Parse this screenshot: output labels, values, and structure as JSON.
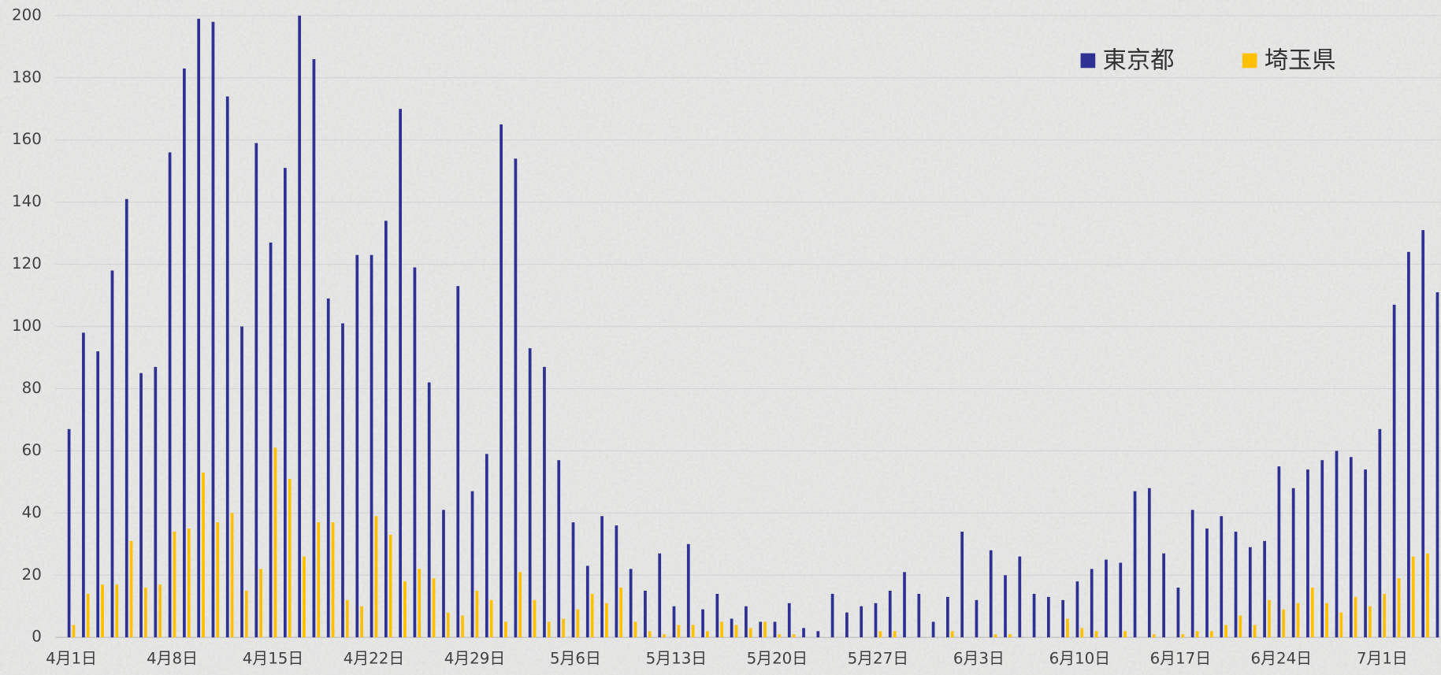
{
  "chart_data": {
    "type": "bar",
    "categories": [
      "4月1日",
      null,
      null,
      null,
      null,
      null,
      null,
      "4月8日",
      null,
      null,
      null,
      null,
      null,
      null,
      "4月15日",
      null,
      null,
      null,
      null,
      null,
      null,
      "4月22日",
      null,
      null,
      null,
      null,
      null,
      null,
      "4月29日",
      null,
      null,
      null,
      null,
      null,
      null,
      "5月6日",
      null,
      null,
      null,
      null,
      null,
      null,
      "5月13日",
      null,
      null,
      null,
      null,
      null,
      null,
      "5月20日",
      null,
      null,
      null,
      null,
      null,
      null,
      "5月27日",
      null,
      null,
      null,
      null,
      null,
      null,
      "6月3日",
      null,
      null,
      null,
      null,
      null,
      null,
      "6月10日",
      null,
      null,
      null,
      null,
      null,
      null,
      "6月17日",
      null,
      null,
      null,
      null,
      null,
      null,
      "6月24日",
      null,
      null,
      null,
      null,
      null,
      null,
      "7月1日",
      null,
      null,
      null,
      null
    ],
    "series": [
      {
        "name": "東京都",
        "color": "#2e3192",
        "values": [
          67,
          98,
          92,
          118,
          141,
          85,
          87,
          156,
          183,
          199,
          198,
          174,
          100,
          159,
          127,
          151,
          200,
          186,
          109,
          101,
          123,
          123,
          134,
          170,
          119,
          82,
          41,
          113,
          47,
          59,
          165,
          154,
          93,
          87,
          57,
          37,
          23,
          39,
          36,
          22,
          15,
          27,
          10,
          30,
          9,
          14,
          6,
          10,
          5,
          5,
          11,
          3,
          2,
          14,
          8,
          10,
          11,
          15,
          21,
          14,
          5,
          13,
          34,
          12,
          28,
          20,
          26,
          14,
          13,
          12,
          18,
          22,
          25,
          24,
          47,
          48,
          27,
          16,
          41,
          35,
          39,
          34,
          29,
          31,
          55,
          48,
          54,
          57,
          60,
          58,
          54,
          67,
          107,
          124,
          131,
          111
        ]
      },
      {
        "name": "埼玉県",
        "color": "#ffc000",
        "values": [
          4,
          14,
          17,
          17,
          31,
          16,
          17,
          34,
          35,
          53,
          37,
          40,
          15,
          22,
          61,
          51,
          26,
          37,
          37,
          12,
          10,
          39,
          33,
          18,
          22,
          19,
          8,
          7,
          15,
          12,
          5,
          21,
          12,
          5,
          6,
          9,
          14,
          11,
          16,
          5,
          2,
          1,
          4,
          4,
          2,
          5,
          4,
          3,
          5,
          1,
          1,
          0,
          0,
          0,
          0,
          0,
          2,
          2,
          0,
          0,
          0,
          2,
          0,
          0,
          1,
          1,
          0,
          0,
          0,
          6,
          3,
          2,
          0,
          2,
          0,
          1,
          0,
          1,
          2,
          2,
          4,
          7,
          4,
          12,
          9,
          11,
          16,
          11,
          8,
          13,
          10,
          14,
          19,
          26,
          27,
          null
        ]
      }
    ],
    "ylim": [
      0,
      200
    ],
    "yticks": [
      0,
      20,
      40,
      60,
      80,
      100,
      120,
      140,
      160,
      180,
      200
    ],
    "grid": true,
    "legend": "top-right"
  }
}
